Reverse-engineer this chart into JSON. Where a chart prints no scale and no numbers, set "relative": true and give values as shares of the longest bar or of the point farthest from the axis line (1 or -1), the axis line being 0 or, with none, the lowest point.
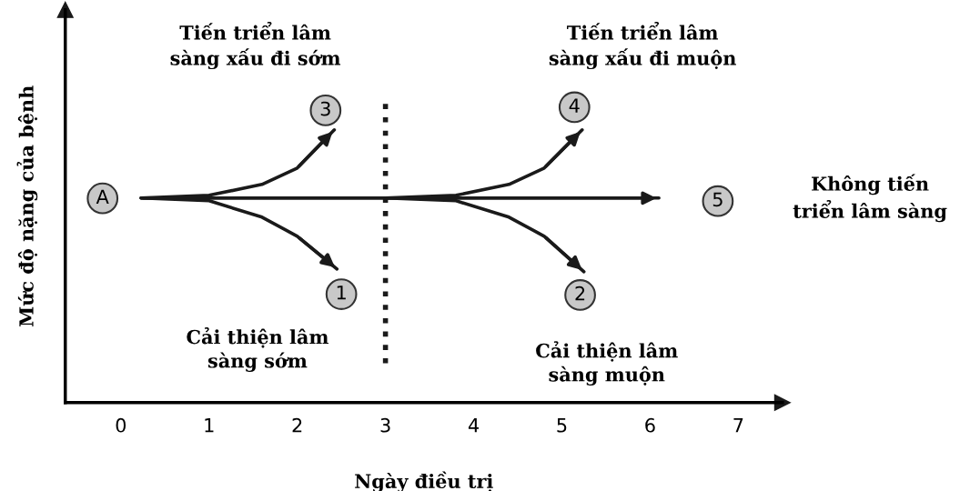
{
  "chart_data": {
    "type": "line",
    "relative": true,
    "xlabel": "Ngày điều trị",
    "ylabel": "Mức độ nặng của bệnh",
    "xlim": [
      -0.63,
      7.5
    ],
    "xticks": [
      0,
      1,
      2,
      3,
      4,
      5,
      6,
      7
    ],
    "series": [
      {
        "name": "Không tiến\ntriển lâm sàng",
        "color": "#1a1a1a",
        "x": [
          0.23,
          6.1
        ],
        "values": [
          0.75,
          0.75
        ]
      },
      {
        "color": "#1a1a1a",
        "x": [
          0.23,
          1.0,
          1.6,
          2.0,
          2.42
        ],
        "values": [
          0.75,
          0.76,
          0.8,
          0.86,
          1.0
        ]
      },
      {
        "color": "#1a1a1a",
        "x": [
          0.23,
          1.0,
          1.6,
          2.0,
          2.45
        ],
        "values": [
          0.75,
          0.74,
          0.68,
          0.61,
          0.49
        ]
      },
      {
        "color": "#1a1a1a",
        "x": [
          3,
          3.8,
          4.4,
          4.8,
          5.23
        ],
        "values": [
          0.75,
          0.76,
          0.8,
          0.86,
          1.0
        ]
      },
      {
        "color": "#1a1a1a",
        "x": [
          3,
          3.8,
          4.4,
          4.8,
          5.25
        ],
        "values": [
          0.75,
          0.74,
          0.68,
          0.61,
          0.48
        ]
      }
    ],
    "ref_lines": [
      {
        "axis": "x",
        "value": 3,
        "color": "#1a1a1a",
        "line_style": "dotted"
      }
    ],
    "annotations": [
      "A",
      "3",
      "1",
      "4",
      "2",
      "5",
      "Tiến triển lâm\nsàng xấu đi sớm",
      "Tiến triển lâm\nsàng xấu đi muộn",
      "Cải thiện lâm\nsàng sớm",
      "Cải thiện lâm\nsàng muộn"
    ]
  }
}
